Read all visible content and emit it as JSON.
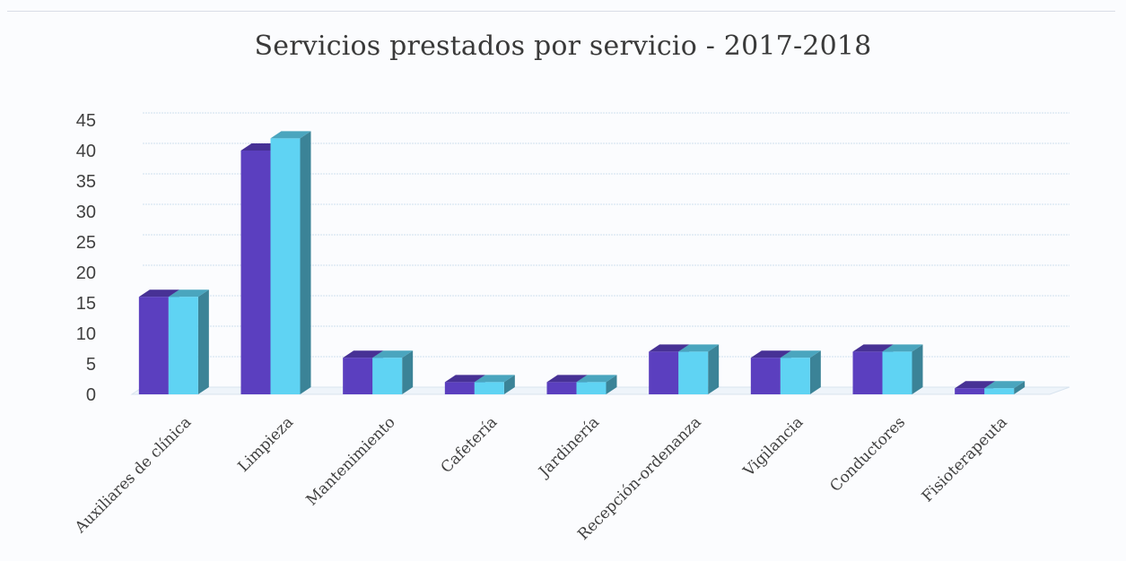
{
  "chart_data": {
    "type": "bar",
    "title": "Servicios prestados por servicio - 2017-2018",
    "xlabel": "",
    "ylabel": "",
    "ylim": [
      0,
      45
    ],
    "yticks": [
      0,
      5,
      10,
      15,
      20,
      25,
      30,
      35,
      40,
      45
    ],
    "grid": true,
    "legend": "none",
    "categories": [
      "Auxiliares de clínica",
      "Limpieza",
      "Mantenimiento",
      "Cafetería",
      "Jardinería",
      "Recepción-ordenanza",
      "Vigilancia",
      "Conductores",
      "Fisioterapeuta"
    ],
    "series": [
      {
        "values": [
          16,
          40,
          6,
          2,
          2,
          7,
          6,
          7,
          1
        ],
        "color": "#5b3fbf"
      },
      {
        "values": [
          16,
          42,
          6,
          2,
          2,
          7,
          6,
          7,
          1
        ],
        "color": "#5fd3f3"
      }
    ]
  }
}
